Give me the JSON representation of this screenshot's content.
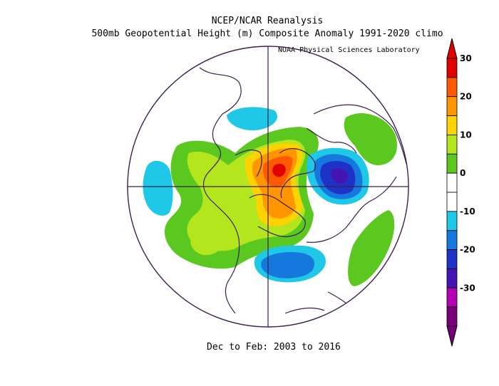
{
  "title": "NCEP/NCAR Reanalysis",
  "subtitle": "500mb Geopotential Height (m) Composite Anomaly 1991-2020 climo",
  "credit": "NOAA Physical Sciences Laboratory",
  "period": "Dec to Feb: 2003 to 2016",
  "colorbar": {
    "labels": [
      "30",
      "20",
      "10",
      "0",
      "-10",
      "-20",
      "-30"
    ],
    "colors": [
      "#e00000",
      "#ff5a00",
      "#ff9600",
      "#ffd200",
      "#b4e61e",
      "#5ac81e",
      "#ffffff",
      "#ffffff",
      "#1ec8e6",
      "#1478dc",
      "#1e32c8",
      "#4614b4",
      "#b400b4",
      "#780078"
    ]
  }
}
